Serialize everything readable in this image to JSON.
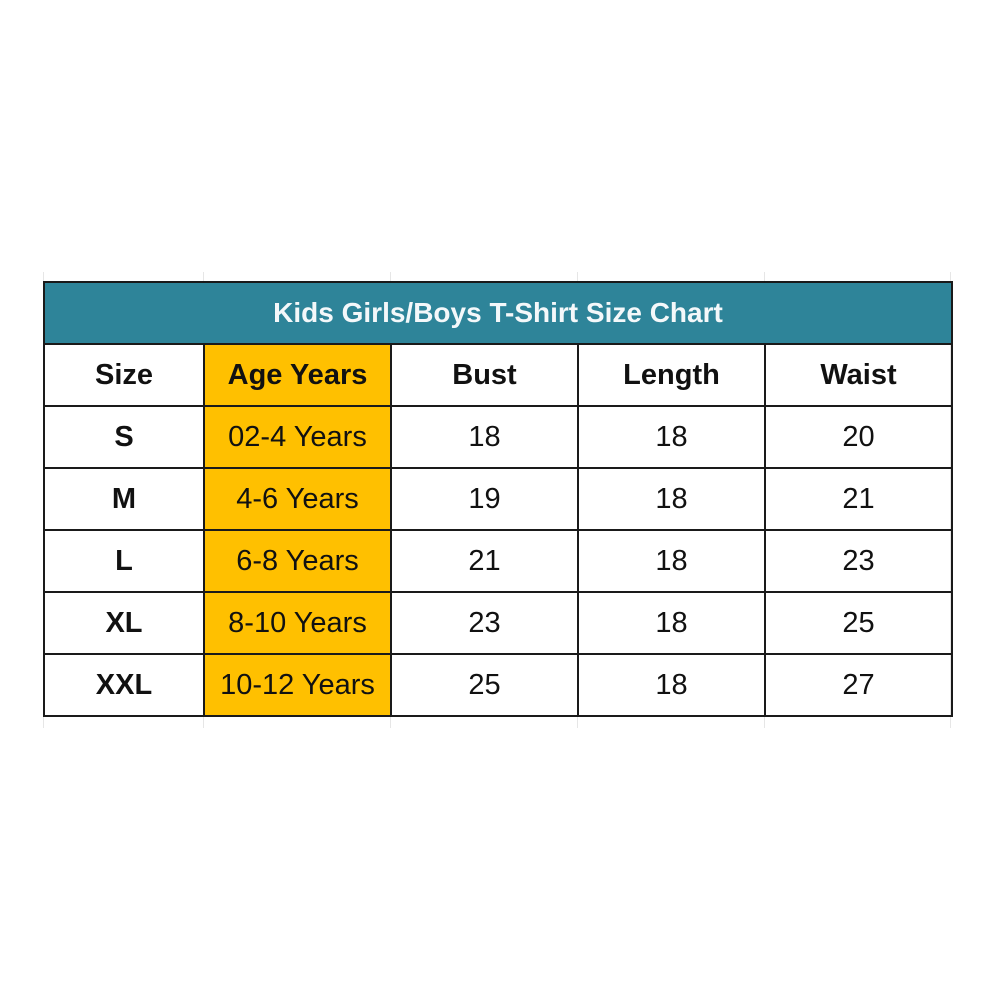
{
  "title": "Kids Girls/Boys T-Shirt Size Chart",
  "colors": {
    "title_bg": "#2e8499",
    "age_column_bg": "#ffc000"
  },
  "headers": [
    "Size",
    "Age Years",
    "Bust",
    "Length",
    "Waist"
  ],
  "rows": [
    [
      "S",
      "02-4 Years",
      "18",
      "18",
      "20"
    ],
    [
      "M",
      "4-6 Years",
      "19",
      "18",
      "21"
    ],
    [
      "L",
      "6-8 Years",
      "21",
      "18",
      "23"
    ],
    [
      "XL",
      "8-10 Years",
      "23",
      "18",
      "25"
    ],
    [
      "XXL",
      "10-12 Years",
      "25",
      "18",
      "27"
    ]
  ]
}
